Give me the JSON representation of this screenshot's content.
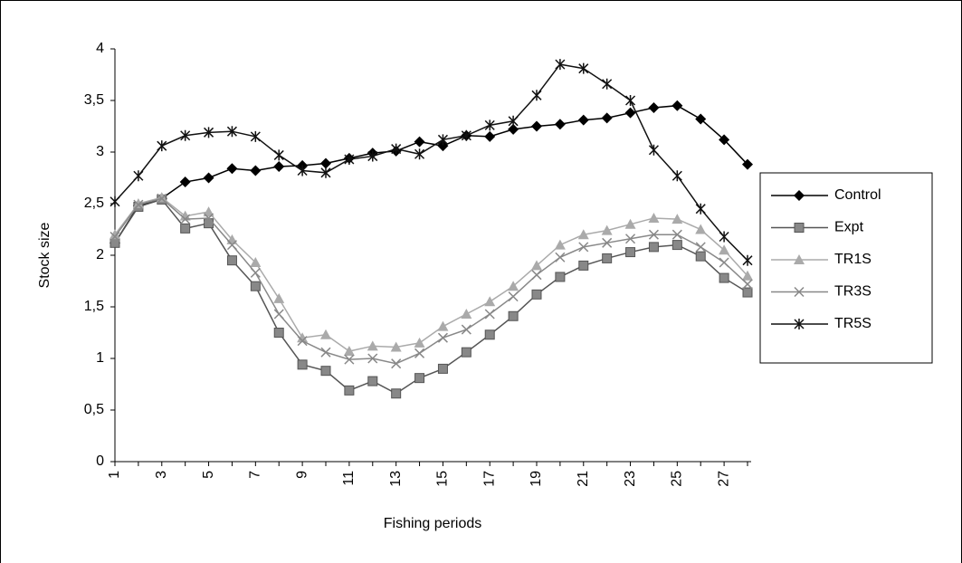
{
  "chart_data": {
    "type": "line",
    "xlabel": "Fishing periods",
    "ylabel": "Stock size",
    "categories": [
      "1",
      null,
      "3",
      null,
      "5",
      null,
      "7",
      null,
      "9",
      null,
      "11",
      null,
      "13",
      null,
      "15",
      null,
      "17",
      null,
      "19",
      null,
      "21",
      null,
      "23",
      null,
      "25",
      null,
      "27",
      null
    ],
    "ylim": [
      0,
      4
    ],
    "yticks": [
      0,
      {
        "value": 0.5,
        "label": "0,5"
      },
      1,
      {
        "value": 1.5,
        "label": "1,5"
      },
      2,
      {
        "value": 2.5,
        "label": "2,5"
      },
      3,
      {
        "value": 3.5,
        "label": "3,5"
      },
      4
    ],
    "legend": "right",
    "series": [
      {
        "name": "Control",
        "color": "#000000",
        "values": [
          2.12,
          2.48,
          2.55,
          2.71,
          2.75,
          2.84,
          2.82,
          2.86,
          2.87,
          2.89,
          2.94,
          2.99,
          3.01,
          3.1,
          3.06,
          3.16,
          3.15,
          3.22,
          3.25,
          3.27,
          3.31,
          3.33,
          3.38,
          3.43,
          3.45,
          3.32,
          3.12,
          2.88
        ]
      },
      {
        "name": "Expt",
        "color": "#555555",
        "values": [
          2.12,
          2.47,
          2.54,
          2.26,
          2.31,
          1.95,
          1.7,
          1.25,
          0.94,
          0.88,
          0.69,
          0.78,
          0.66,
          0.81,
          0.9,
          1.06,
          1.23,
          1.41,
          1.62,
          1.79,
          1.9,
          1.97,
          2.03,
          2.08,
          2.1,
          1.99,
          1.78,
          1.64
        ]
      },
      {
        "name": "TR1S",
        "color": "#aaaaaa",
        "values": [
          2.2,
          2.5,
          2.56,
          2.38,
          2.42,
          2.15,
          1.93,
          1.58,
          1.2,
          1.23,
          1.07,
          1.12,
          1.11,
          1.15,
          1.31,
          1.43,
          1.55,
          1.7,
          1.9,
          2.1,
          2.2,
          2.24,
          2.3,
          2.36,
          2.35,
          2.25,
          2.05,
          1.8
        ]
      },
      {
        "name": "TR3S",
        "color": "#888888",
        "values": [
          2.18,
          2.49,
          2.55,
          2.35,
          2.36,
          2.1,
          1.83,
          1.43,
          1.17,
          1.06,
          0.99,
          1.0,
          0.95,
          1.05,
          1.2,
          1.28,
          1.43,
          1.6,
          1.81,
          1.98,
          2.08,
          2.12,
          2.16,
          2.2,
          2.2,
          2.08,
          1.93,
          1.72
        ]
      },
      {
        "name": "TR5S",
        "color": "#111111",
        "values": [
          2.52,
          2.77,
          3.06,
          3.16,
          3.19,
          3.2,
          3.15,
          2.97,
          2.82,
          2.8,
          2.93,
          2.96,
          3.03,
          2.98,
          3.12,
          3.16,
          3.26,
          3.3,
          3.55,
          3.85,
          3.81,
          3.66,
          3.5,
          3.02,
          2.77,
          2.45,
          2.18,
          1.95
        ]
      }
    ]
  }
}
